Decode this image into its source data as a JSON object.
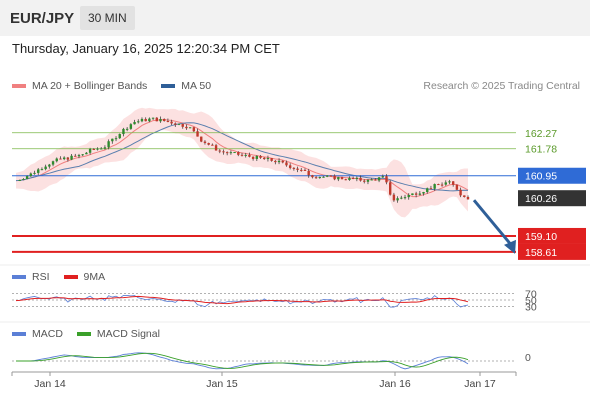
{
  "header": {
    "symbol": "EUR/JPY",
    "timeframe": "30 MIN"
  },
  "datetime": "Thursday, January 16, 2025 12:20:34 PM CET",
  "legend_main": [
    {
      "label": "MA 20 + Bollinger Bands",
      "color": "#f08080"
    },
    {
      "label": "MA 50",
      "color": "#2f5f98"
    }
  ],
  "credit": "Research © 2025 Trading Central",
  "legend_rsi": [
    {
      "label": "RSI",
      "color": "#5b7fd6"
    },
    {
      "label": "9MA",
      "color": "#e02020"
    }
  ],
  "legend_macd": [
    {
      "label": "MACD",
      "color": "#5b7fd6"
    },
    {
      "label": "MACD Signal",
      "color": "#3aa02a"
    }
  ],
  "chart_data": {
    "type": "candlestick",
    "ylim": [
      158.3,
      163.4
    ],
    "x_ticks": [
      "Jan 14",
      "Jan 15",
      "Jan 16",
      "Jan 17"
    ],
    "levels": [
      {
        "value": 162.27,
        "label": "162.27",
        "kind": "resistance",
        "color": "#7ab648"
      },
      {
        "value": 161.78,
        "label": "161.78",
        "kind": "resistance",
        "color": "#7ab648"
      },
      {
        "value": 160.95,
        "label": "160.95",
        "kind": "pivot",
        "color": "#2f6bd6"
      },
      {
        "value": 160.26,
        "label": "160.26",
        "kind": "last",
        "color": "#333333"
      },
      {
        "value": 159.1,
        "label": "159.10",
        "kind": "support",
        "color": "#e02020"
      },
      {
        "value": 158.61,
        "label": "158.61",
        "kind": "support",
        "color": "#e02020"
      }
    ],
    "arrow": {
      "from": 160.26,
      "to": 158.61,
      "color": "#2f5f98"
    },
    "rsi_levels": [
      "70",
      "50",
      "30"
    ],
    "macd_levels": [
      "0"
    ]
  }
}
